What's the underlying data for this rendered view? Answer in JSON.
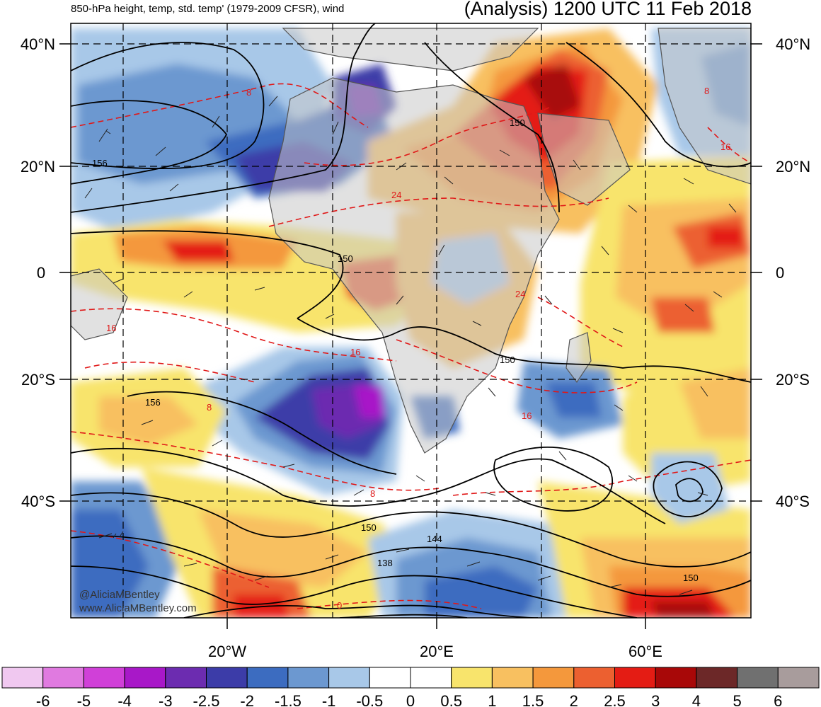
{
  "title_left": "850-hPa height, temp, std. temp' (1979-2009 CFSR), wind",
  "title_right": "(Analysis) 1200 UTC 11 Feb 2018",
  "lat_labels": [
    "40°N",
    "20°N",
    "0",
    "20°S",
    "40°S"
  ],
  "lon_labels": [
    "20°W",
    "20°E",
    "60°E"
  ],
  "credits": [
    "@AliciaMBentley",
    "www.AliciaMBentley.com"
  ],
  "colorbar": {
    "labels": [
      "-6",
      "-5",
      "-4",
      "-3",
      "-2.5",
      "-2",
      "-1.5",
      "-1",
      "-0.5",
      "0",
      "0.5",
      "1",
      "1.5",
      "2",
      "2.5",
      "3",
      "4",
      "5",
      "6"
    ],
    "colors": [
      "#f0c8f0",
      "#e07ae0",
      "#d040d8",
      "#a818c8",
      "#6c2cb0",
      "#3c3ca8",
      "#3c6cc0",
      "#6c98d0",
      "#a8c8e8",
      "#ffffff",
      "#ffffff",
      "#f8e46c",
      "#f8c060",
      "#f4983c",
      "#ec6030",
      "#e41c14",
      "#a80808",
      "#6c2828",
      "#707070",
      "#a89c9c"
    ]
  },
  "height_labels": [
    "156",
    "150",
    "150",
    "150",
    "156",
    "150",
    "144",
    "138",
    "150"
  ],
  "temp_labels": [
    "8",
    "24",
    "16",
    "16",
    "8",
    "24",
    "16",
    "8",
    "16",
    "8",
    "0"
  ]
}
